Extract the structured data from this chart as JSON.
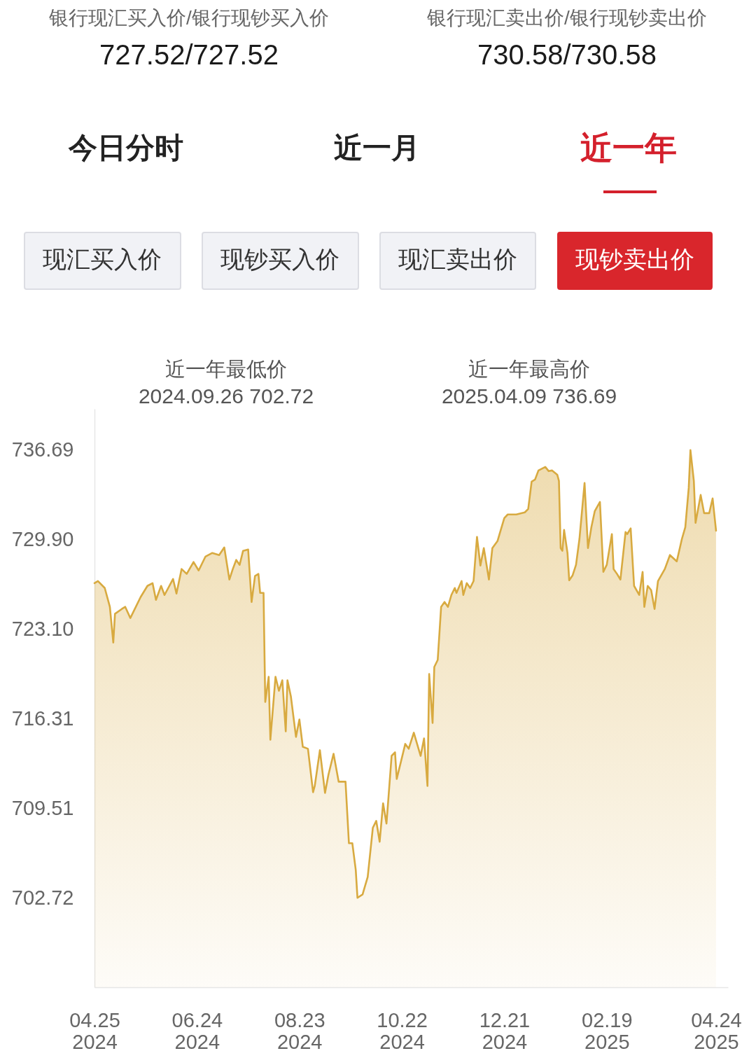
{
  "chart_data": {
    "type": "area",
    "annotations": [
      "银行现汇买入价/银行现钞买入价",
      "727.52/727.52",
      "银行现汇卖出价/银行现钞卖出价",
      "730.58/730.58",
      "今日分时",
      "近一月",
      "近一年",
      "现汇买入价",
      "现钞买入价",
      "现汇卖出价",
      "现钞卖出价",
      "近一年最低价",
      "2024.09.26 702.72",
      "近一年最高价",
      "2025.04.09 736.69"
    ],
    "x": [
      "2024-04-25",
      "2024-04-27",
      "2024-05-01",
      "2024-05-03",
      "2024-05-04",
      "2024-05-06",
      "2024-05-07",
      "2024-05-11",
      "2024-05-13",
      "2024-05-16",
      "2024-05-22",
      "2024-05-26",
      "2024-05-29",
      "2024-05-31",
      "2024-06-03",
      "2024-06-05",
      "2024-06-10",
      "2024-06-12",
      "2024-06-15",
      "2024-06-18",
      "2024-06-22",
      "2024-06-25",
      "2024-06-29",
      "2024-07-03",
      "2024-07-07",
      "2024-07-10",
      "2024-07-13",
      "2024-07-15",
      "2024-07-17",
      "2024-07-19",
      "2024-07-21",
      "2024-07-24",
      "2024-07-26",
      "2024-07-28",
      "2024-07-30",
      "2024-07-31",
      "2024-08-02",
      "2024-08-03",
      "2024-08-05",
      "2024-08-06",
      "2024-08-09",
      "2024-08-11",
      "2024-08-13",
      "2024-08-15",
      "2024-08-16",
      "2024-08-18",
      "2024-08-21",
      "2024-08-23",
      "2024-08-25",
      "2024-08-28",
      "2024-08-31",
      "2024-09-01",
      "2024-09-04",
      "2024-09-07",
      "2024-09-09",
      "2024-09-12",
      "2024-09-15",
      "2024-09-19",
      "2024-09-21",
      "2024-09-23",
      "2024-09-25",
      "2024-09-26",
      "2024-09-29",
      "2024-10-02",
      "2024-10-05",
      "2024-10-07",
      "2024-10-09",
      "2024-10-11",
      "2024-10-13",
      "2024-10-16",
      "2024-10-18",
      "2024-10-19",
      "2024-10-24",
      "2024-10-26",
      "2024-10-29",
      "2024-11-02",
      "2024-11-04",
      "2024-11-06",
      "2024-11-07",
      "2024-11-09",
      "2024-11-10",
      "2024-11-12",
      "2024-11-14",
      "2024-11-16",
      "2024-11-18",
      "2024-11-20",
      "2024-11-22",
      "2024-11-23",
      "2024-11-26",
      "2024-11-27",
      "2024-11-29",
      "2024-12-01",
      "2024-12-03",
      "2024-12-05",
      "2024-12-07",
      "2024-12-09",
      "2024-12-12",
      "2024-12-14",
      "2024-12-17",
      "2024-12-21",
      "2024-12-23",
      "2024-12-28",
      "2025-01-02",
      "2025-01-04",
      "2025-01-06",
      "2025-01-08",
      "2025-01-10",
      "2025-01-14",
      "2025-01-16",
      "2025-01-18",
      "2025-01-21",
      "2025-01-22",
      "2025-01-23",
      "2025-01-24",
      "2025-01-25",
      "2025-01-27",
      "2025-01-28",
      "2025-01-30",
      "2025-02-01",
      "2025-02-03",
      "2025-02-06",
      "2025-02-08",
      "2025-02-10",
      "2025-02-12",
      "2025-02-15",
      "2025-02-17",
      "2025-02-19",
      "2025-02-22",
      "2025-02-23",
      "2025-02-25",
      "2025-02-27",
      "2025-03-02",
      "2025-03-03",
      "2025-03-05",
      "2025-03-07",
      "2025-03-10",
      "2025-03-12",
      "2025-03-13",
      "2025-03-15",
      "2025-03-17",
      "2025-03-19",
      "2025-03-21",
      "2025-03-25",
      "2025-03-28",
      "2025-04-01",
      "2025-04-04",
      "2025-04-06",
      "2025-04-08",
      "2025-04-09",
      "2025-04-11",
      "2025-04-12",
      "2025-04-15",
      "2025-04-17",
      "2025-04-20",
      "2025-04-22",
      "2025-04-24"
    ],
    "series": [
      {
        "color": "#d8aa40",
        "values": [
          726.6,
          726.76,
          726.23,
          725.28,
          724.8,
          722.09,
          724.27,
          724.64,
          724.8,
          723.95,
          725.54,
          726.39,
          726.6,
          725.33,
          726.39,
          725.7,
          726.92,
          725.81,
          727.67,
          727.3,
          728.2,
          727.56,
          728.62,
          728.89,
          728.73,
          729.31,
          726.87,
          727.67,
          728.36,
          727.99,
          729.05,
          729.15,
          725.17,
          727.14,
          727.3,
          725.86,
          725.86,
          717.58,
          719.49,
          714.72,
          719.49,
          718.43,
          719.23,
          715.35,
          719.23,
          718.01,
          714.93,
          716.25,
          714.18,
          714.03,
          710.73,
          711.21,
          713.92,
          710.68,
          712.06,
          713.65,
          711.53,
          711.53,
          706.86,
          706.86,
          704.84,
          702.72,
          702.98,
          704.31,
          708.03,
          708.56,
          706.97,
          709.89,
          708.35,
          713.49,
          713.76,
          711.74,
          714.4,
          714.03,
          715.25,
          713.49,
          714.82,
          711.21,
          719.7,
          715.99,
          720.24,
          720.77,
          724.8,
          725.17,
          724.8,
          725.7,
          726.23,
          725.86,
          726.76,
          725.7,
          726.6,
          726.23,
          726.76,
          730.11,
          727.93,
          729.26,
          726.87,
          729.26,
          729.79,
          731.54,
          731.81,
          731.81,
          731.97,
          732.23,
          734.3,
          734.46,
          735.15,
          735.42,
          735.1,
          735.15,
          734.83,
          734.35,
          729.26,
          729.05,
          730.64,
          728.89,
          726.82,
          727.19,
          727.99,
          729.95,
          734.2,
          729.26,
          730.85,
          732.07,
          732.76,
          727.45,
          727.99,
          730.32,
          727.67,
          727.3,
          726.87,
          730.48,
          730.32,
          730.75,
          726.39,
          725.7,
          727.45,
          724.8,
          726.39,
          726.07,
          724.64,
          726.76,
          727.67,
          728.73,
          728.25,
          729.95,
          730.85,
          733.82,
          736.69,
          734.35,
          731.17,
          733.29,
          731.91,
          731.91,
          733.03,
          730.58
        ]
      }
    ],
    "xlim": [
      "2024-04-25",
      "2025-05-01"
    ],
    "xticks": [
      {
        "value": "2024-04-25",
        "label": "04.25\n2024"
      },
      {
        "value": "2024-06-24",
        "label": "06.24\n2024"
      },
      {
        "value": "2024-08-23",
        "label": "08.23\n2024"
      },
      {
        "value": "2024-10-22",
        "label": "10.22\n2024"
      },
      {
        "value": "2024-12-21",
        "label": "12.21\n2024"
      },
      {
        "value": "2025-02-19",
        "label": "02.19\n2025"
      },
      {
        "value": "2025-04-24",
        "label": "04.24\n2025"
      }
    ],
    "ylim": [
      695.93,
      739.82
    ],
    "yticks": [
      702.72,
      709.51,
      716.31,
      {
        "value": 723.1,
        "label": "723.10"
      },
      {
        "value": 729.9,
        "label": "729.90"
      },
      736.69
    ]
  }
}
